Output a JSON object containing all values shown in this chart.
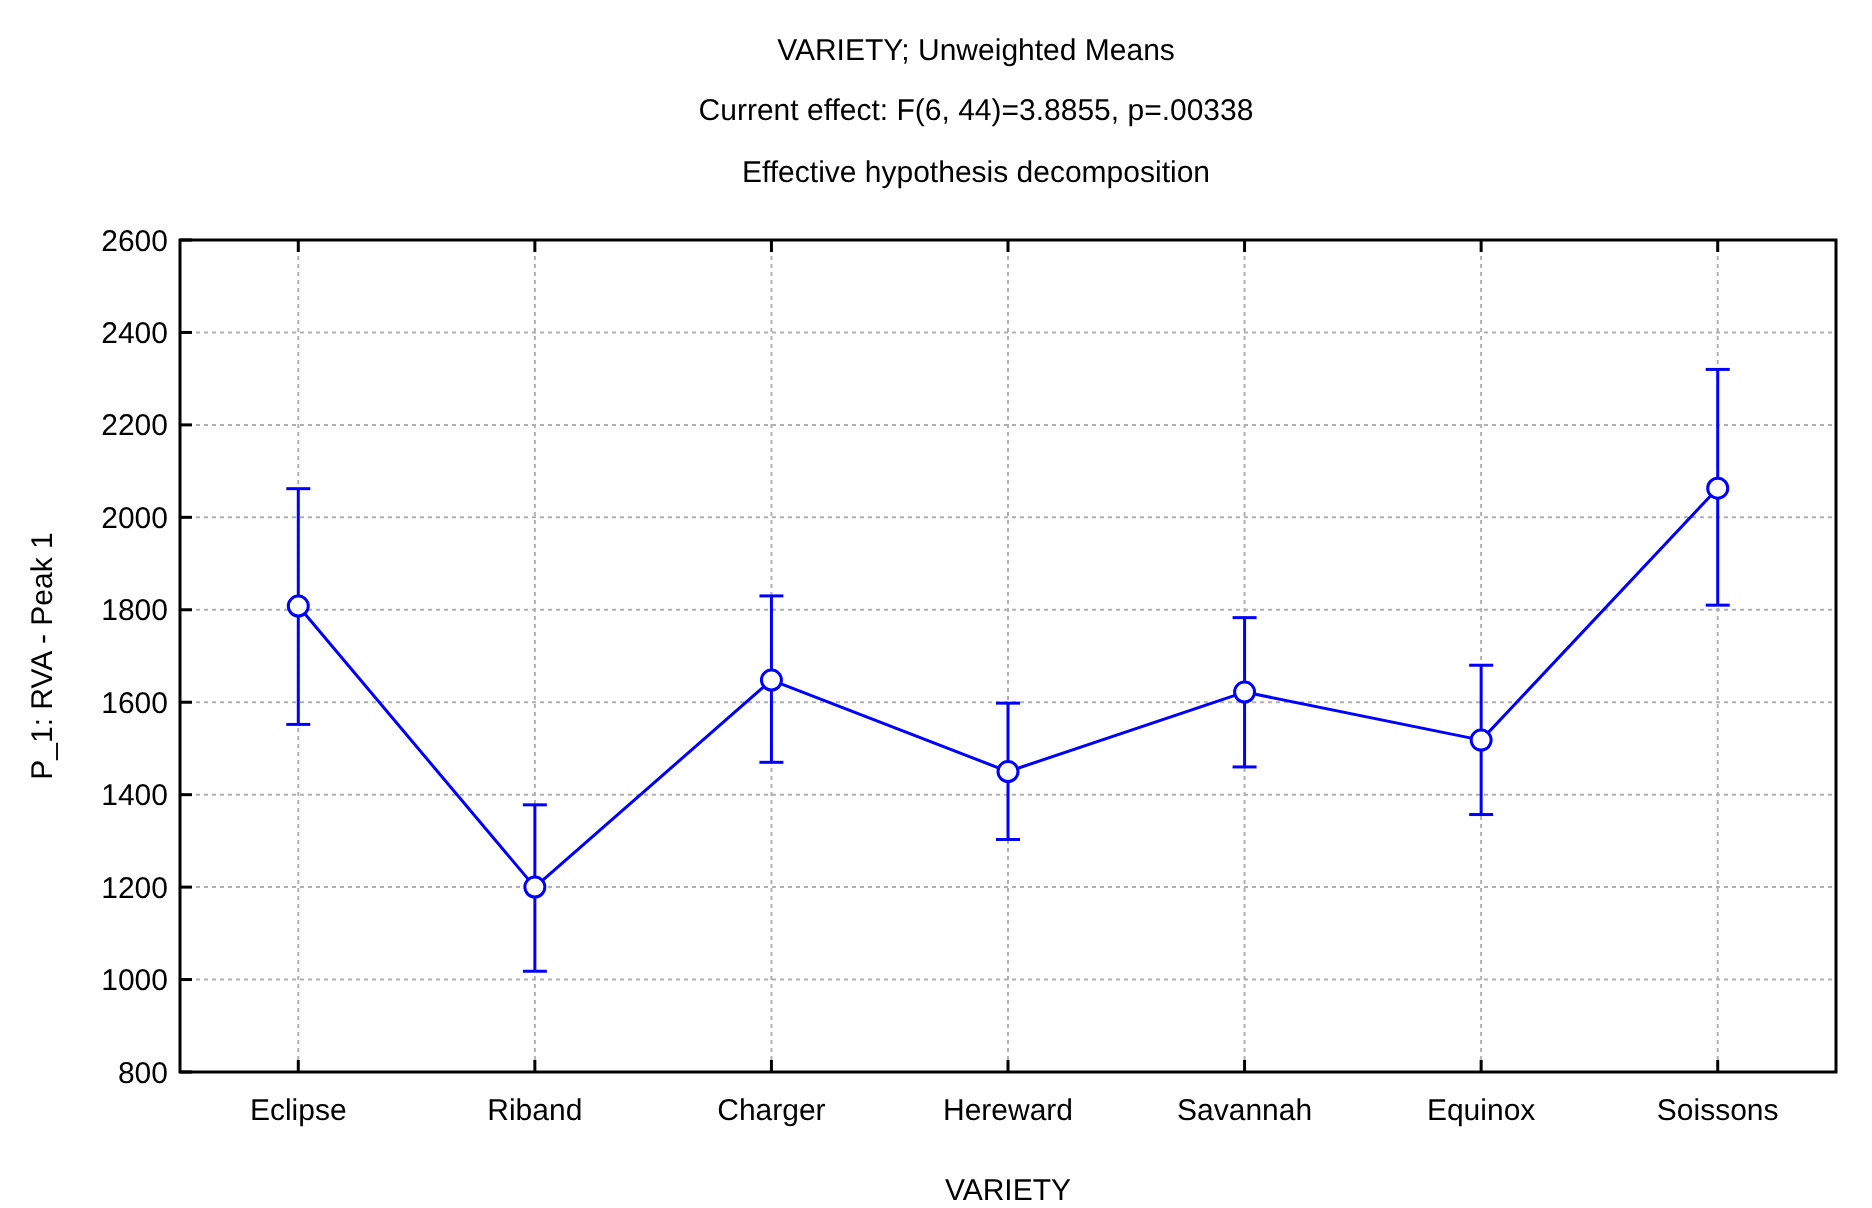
{
  "chart_data": {
    "type": "line",
    "title": "VARIETY; Unweighted Means",
    "subtitle": "Current effect: F(6, 44)=3.8855, p=.00338",
    "annotations": [
      "Effective hypothesis decomposition"
    ],
    "xlabel": "VARIETY",
    "ylabel": "P_1: RVA - Peak 1",
    "categories": [
      "Eclipse",
      "Riband",
      "Charger",
      "Hereward",
      "Savannah",
      "Equinox",
      "Soissons"
    ],
    "series": [
      {
        "color": "#0000ff",
        "values": [
          1808,
          1200,
          1648,
          1450,
          1622,
          1518,
          2063
        ],
        "errors": [
          [
            1552,
            2062
          ],
          [
            1018,
            1378
          ],
          [
            1470,
            1830
          ],
          [
            1303,
            1598
          ],
          [
            1460,
            1783
          ],
          [
            1357,
            1680
          ],
          [
            1810,
            2320
          ]
        ]
      }
    ],
    "ylim": [
      800,
      2600
    ],
    "yticks": [
      800,
      1000,
      1200,
      1400,
      1600,
      1800,
      2000,
      2200,
      2400,
      2600
    ],
    "grid": true,
    "marker": "circle",
    "line_style": "solid"
  }
}
